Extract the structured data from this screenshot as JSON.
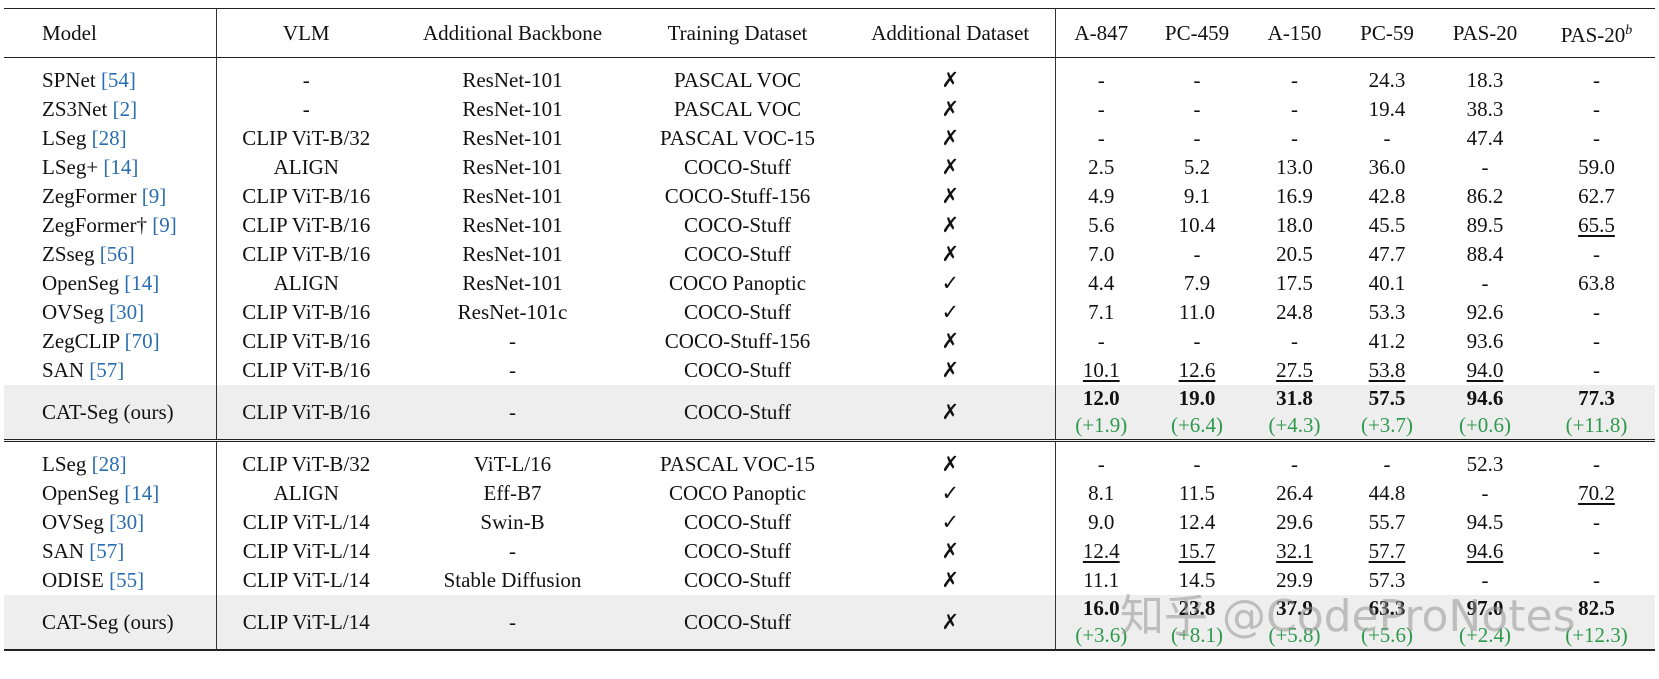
{
  "table": {
    "header": [
      "Model",
      "VLM",
      "Additional Backbone",
      "Training Dataset",
      "Additional Dataset",
      "A-847",
      "PC-459",
      "A-150",
      "PC-59",
      "PAS-20",
      {
        "text": "PAS-20",
        "sup": "b"
      }
    ],
    "sections": [
      {
        "rows": [
          {
            "cells": [
              {
                "text": "SPNet",
                "ref": "[54]"
              },
              "-",
              "ResNet-101",
              "PASCAL VOC",
              "✗",
              "-",
              "-",
              "-",
              "24.3",
              "18.3",
              "-"
            ]
          },
          {
            "cells": [
              {
                "text": "ZS3Net",
                "ref": "[2]"
              },
              "-",
              "ResNet-101",
              "PASCAL VOC",
              "✗",
              "-",
              "-",
              "-",
              "19.4",
              "38.3",
              "-"
            ]
          },
          {
            "cells": [
              {
                "text": "LSeg",
                "ref": "[28]"
              },
              "CLIP ViT-B/32",
              "ResNet-101",
              "PASCAL VOC-15",
              "✗",
              "-",
              "-",
              "-",
              "-",
              "47.4",
              "-"
            ]
          },
          {
            "cells": [
              {
                "text": "LSeg+",
                "ref": "[14]"
              },
              "ALIGN",
              "ResNet-101",
              "COCO-Stuff",
              "✗",
              "2.5",
              "5.2",
              "13.0",
              "36.0",
              "-",
              "59.0"
            ]
          },
          {
            "cells": [
              {
                "text": "ZegFormer",
                "ref": "[9]"
              },
              "CLIP ViT-B/16",
              "ResNet-101",
              "COCO-Stuff-156",
              "✗",
              "4.9",
              "9.1",
              "16.9",
              "42.8",
              "86.2",
              "62.7"
            ]
          },
          {
            "cells": [
              {
                "text": "ZegFormer†",
                "ref": "[9]"
              },
              "CLIP ViT-B/16",
              "ResNet-101",
              "COCO-Stuff",
              "✗",
              "5.6",
              "10.4",
              "18.0",
              "45.5",
              "89.5",
              {
                "text": "65.5",
                "underline": true
              }
            ]
          },
          {
            "cells": [
              {
                "text": "ZSseg",
                "ref": "[56]"
              },
              "CLIP ViT-B/16",
              "ResNet-101",
              "COCO-Stuff",
              "✗",
              "7.0",
              "-",
              "20.5",
              "47.7",
              "88.4",
              "-"
            ]
          },
          {
            "cells": [
              {
                "text": "OpenSeg",
                "ref": "[14]"
              },
              "ALIGN",
              "ResNet-101",
              "COCO Panoptic",
              "✓",
              "4.4",
              "7.9",
              "17.5",
              "40.1",
              "-",
              "63.8"
            ]
          },
          {
            "cells": [
              {
                "text": "OVSeg",
                "ref": "[30]"
              },
              "CLIP ViT-B/16",
              "ResNet-101c",
              "COCO-Stuff",
              "✓",
              "7.1",
              "11.0",
              "24.8",
              "53.3",
              "92.6",
              "-"
            ]
          },
          {
            "cells": [
              {
                "text": "ZegCLIP",
                "ref": "[70]"
              },
              "CLIP ViT-B/16",
              "-",
              "COCO-Stuff-156",
              "✗",
              "-",
              "-",
              "-",
              "41.2",
              "93.6",
              "-"
            ]
          },
          {
            "cells": [
              {
                "text": "SAN",
                "ref": "[57]"
              },
              "CLIP ViT-B/16",
              "-",
              "COCO-Stuff",
              "✗",
              {
                "text": "10.1",
                "underline": true
              },
              {
                "text": "12.6",
                "underline": true
              },
              {
                "text": "27.5",
                "underline": true
              },
              {
                "text": "53.8",
                "underline": true
              },
              {
                "text": "94.0",
                "underline": true
              },
              "-"
            ]
          },
          {
            "highlight": true,
            "cells": [
              {
                "text": "CAT-Seg (ours)"
              },
              "CLIP ViT-B/16",
              "-",
              "COCO-Stuff",
              "✗",
              {
                "text": "12.0",
                "delta": "(+1.9)"
              },
              {
                "text": "19.0",
                "delta": "(+6.4)"
              },
              {
                "text": "31.8",
                "delta": "(+4.3)"
              },
              {
                "text": "57.5",
                "delta": "(+3.7)"
              },
              {
                "text": "94.6",
                "delta": "(+0.6)"
              },
              {
                "text": "77.3",
                "delta": "(+11.8)"
              }
            ]
          }
        ]
      },
      {
        "rows": [
          {
            "cells": [
              {
                "text": "LSeg",
                "ref": "[28]"
              },
              "CLIP ViT-B/32",
              "ViT-L/16",
              "PASCAL VOC-15",
              "✗",
              "-",
              "-",
              "-",
              "-",
              "52.3",
              "-"
            ]
          },
          {
            "cells": [
              {
                "text": "OpenSeg",
                "ref": "[14]"
              },
              "ALIGN",
              "Eff-B7",
              "COCO Panoptic",
              "✓",
              "8.1",
              "11.5",
              "26.4",
              "44.8",
              "-",
              {
                "text": "70.2",
                "underline": true
              }
            ]
          },
          {
            "cells": [
              {
                "text": "OVSeg",
                "ref": "[30]"
              },
              "CLIP ViT-L/14",
              "Swin-B",
              "COCO-Stuff",
              "✓",
              "9.0",
              "12.4",
              "29.6",
              "55.7",
              "94.5",
              "-"
            ]
          },
          {
            "cells": [
              {
                "text": "SAN",
                "ref": "[57]"
              },
              "CLIP ViT-L/14",
              "-",
              "COCO-Stuff",
              "✗",
              {
                "text": "12.4",
                "underline": true
              },
              {
                "text": "15.7",
                "underline": true
              },
              {
                "text": "32.1",
                "underline": true
              },
              {
                "text": "57.7",
                "underline": true
              },
              {
                "text": "94.6",
                "underline": true
              },
              "-"
            ]
          },
          {
            "cells": [
              {
                "text": "ODISE",
                "ref": "[55]"
              },
              "CLIP ViT-L/14",
              "Stable Diffusion",
              "COCO-Stuff",
              "✗",
              "11.1",
              "14.5",
              "29.9",
              "57.3",
              "-",
              "-"
            ]
          },
          {
            "highlight": true,
            "cells": [
              {
                "text": "CAT-Seg (ours)"
              },
              "CLIP ViT-L/14",
              "-",
              "COCO-Stuff",
              "✗",
              {
                "text": "16.0",
                "delta": "(+3.6)"
              },
              {
                "text": "23.8",
                "delta": "(+8.1)"
              },
              {
                "text": "37.9",
                "delta": "(+5.8)"
              },
              {
                "text": "63.3",
                "delta": "(+5.6)"
              },
              {
                "text": "97.0",
                "delta": "(+2.4)"
              },
              {
                "text": "82.5",
                "delta": "(+12.3)"
              }
            ]
          }
        ]
      }
    ]
  },
  "watermark": "知乎 @CodeProNotes"
}
